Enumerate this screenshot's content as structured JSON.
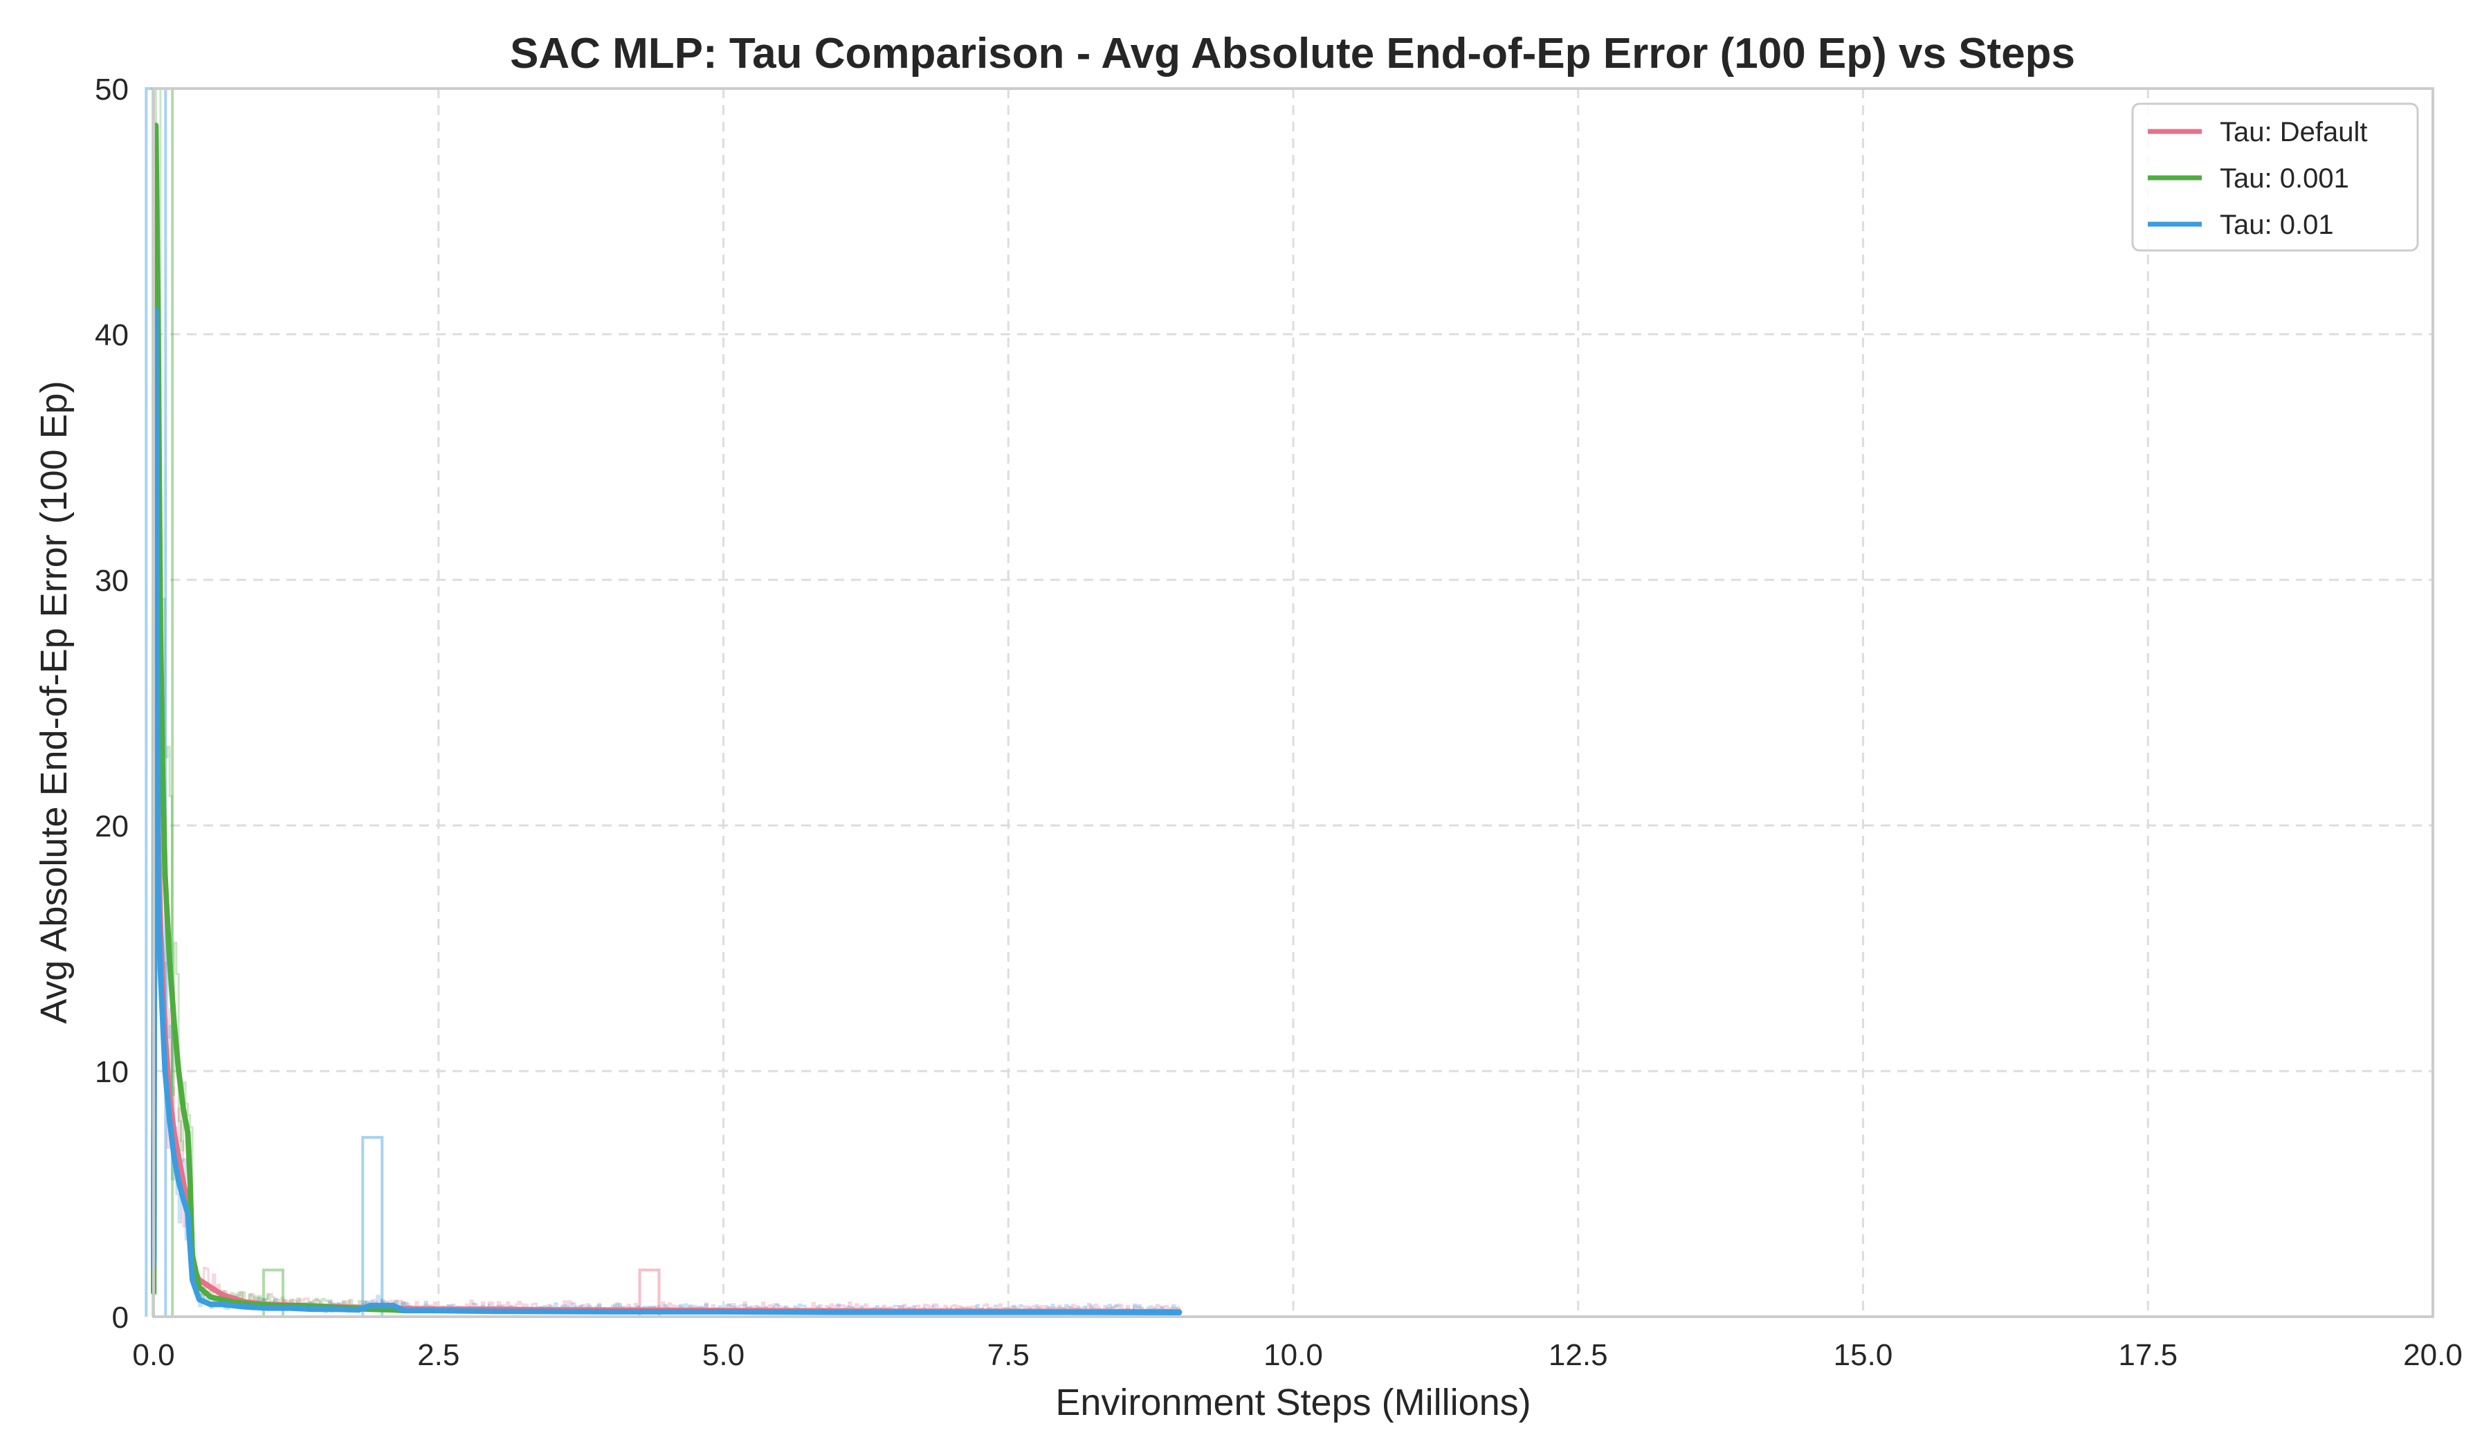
{
  "chart_data": {
    "type": "line",
    "title": "SAC MLP: Tau Comparison - Avg Absolute End-of-Ep Error (100 Ep) vs Steps",
    "xlabel": "Environment Steps (Millions)",
    "ylabel": "Avg Absolute End-of-Ep Error (100 Ep)",
    "xlim": [
      0,
      20
    ],
    "ylim": [
      0,
      50
    ],
    "xticks": [
      "0.0",
      "2.5",
      "5.0",
      "7.5",
      "10.0",
      "12.5",
      "15.0",
      "17.5",
      "20.0"
    ],
    "yticks": [
      "0",
      "10",
      "20",
      "30",
      "40",
      "50"
    ],
    "grid": true,
    "legend_position": "top-right",
    "series": [
      {
        "name": "Tau: Default",
        "color": "#e8718a",
        "x": [
          0.0,
          0.02,
          0.04,
          0.06,
          0.08,
          0.1,
          0.14,
          0.18,
          0.22,
          0.26,
          0.3,
          0.34,
          0.4,
          0.5,
          0.6,
          0.8,
          1.0,
          1.3,
          1.6,
          2.0,
          2.5,
          3.0,
          3.5,
          4.0,
          4.5,
          5.0,
          6.0,
          7.0,
          8.0,
          9.0
        ],
        "y": [
          4.0,
          30.0,
          20.0,
          16.0,
          13.5,
          11.5,
          9.0,
          7.5,
          6.5,
          5.5,
          4.5,
          2.0,
          1.5,
          1.2,
          0.9,
          0.6,
          0.5,
          0.45,
          0.4,
          0.35,
          0.3,
          0.3,
          0.28,
          0.27,
          0.26,
          0.25,
          0.23,
          0.22,
          0.21,
          0.2
        ]
      },
      {
        "name": "Tau: 0.001",
        "color": "#4fad3f",
        "x": [
          0.0,
          0.02,
          0.04,
          0.06,
          0.08,
          0.1,
          0.14,
          0.18,
          0.22,
          0.26,
          0.3,
          0.32,
          0.34,
          0.4,
          0.5,
          0.7,
          0.9,
          1.1,
          1.3,
          1.5,
          1.7,
          1.9,
          2.1,
          2.2
        ],
        "y": [
          1.0,
          48.5,
          40.0,
          28.0,
          22.0,
          18.0,
          14.5,
          12.0,
          10.0,
          8.5,
          7.5,
          5.5,
          2.5,
          1.2,
          0.8,
          0.6,
          0.5,
          0.45,
          0.45,
          0.4,
          0.35,
          0.3,
          0.28,
          0.25
        ]
      },
      {
        "name": "Tau: 0.01",
        "color": "#3b9de0",
        "x": [
          0.0,
          0.02,
          0.04,
          0.06,
          0.08,
          0.1,
          0.14,
          0.18,
          0.22,
          0.26,
          0.3,
          0.34,
          0.4,
          0.5,
          0.6,
          0.8,
          1.0,
          1.2,
          1.4,
          1.6,
          1.8,
          1.9,
          2.1,
          2.2,
          2.4,
          3.0,
          4.0,
          5.0,
          6.0,
          7.0,
          8.0,
          9.0
        ],
        "y": [
          2.0,
          41.0,
          17.5,
          14.0,
          12.0,
          10.0,
          8.0,
          6.5,
          5.5,
          4.8,
          4.2,
          1.5,
          0.7,
          0.5,
          0.5,
          0.4,
          0.35,
          0.35,
          0.3,
          0.3,
          0.28,
          0.45,
          0.45,
          0.25,
          0.25,
          0.22,
          0.2,
          0.2,
          0.18,
          0.18,
          0.18,
          0.17
        ]
      }
    ],
    "raw_spikes": [
      {
        "series": "Tau: 0.01",
        "x": 1.92,
        "y": 7.3
      },
      {
        "series": "Tau: Default",
        "x": 4.35,
        "y": 1.9
      },
      {
        "series": "Tau: 0.001",
        "x": 1.05,
        "y": 1.9
      },
      {
        "series": "Tau: 0.001",
        "x": 0.08,
        "y": 50.0
      },
      {
        "series": "Tau: 0.01",
        "x": 0.02,
        "y": 50.0
      }
    ]
  }
}
